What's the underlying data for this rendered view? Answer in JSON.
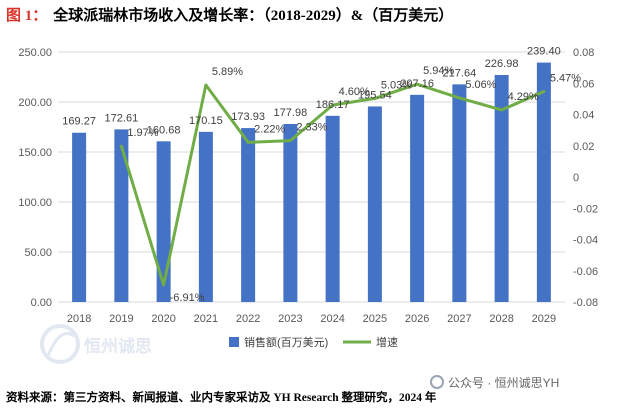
{
  "header": {
    "figure_label": "图 1：",
    "title": "全球派瑞林市场收入及增长率：（2018-2029）&（百万美元）"
  },
  "chart_data": {
    "type": "bar",
    "title": "全球派瑞林市场收入及增长率：（2018-2029）&（百万美元）",
    "categories": [
      "2018",
      "2019",
      "2020",
      "2021",
      "2022",
      "2023",
      "2024",
      "2025",
      "2026",
      "2027",
      "2028",
      "2029"
    ],
    "series": [
      {
        "name": "销售额(百万美元)",
        "type": "bar",
        "axis": "left",
        "color": "#4472c4",
        "values": [
          169.27,
          172.61,
          160.68,
          170.15,
          173.93,
          177.98,
          186.17,
          195.54,
          207.16,
          217.64,
          226.98,
          239.4
        ],
        "labels": [
          "169.27",
          "172.61",
          "160.68",
          "170.15",
          "173.93",
          "177.98",
          "186.17",
          "195.54",
          "207.16",
          "217.64",
          "226.98",
          "239.40"
        ]
      },
      {
        "name": "增速",
        "type": "line",
        "axis": "right",
        "color": "#70ad47",
        "values": [
          null,
          0.0197,
          -0.0691,
          0.0589,
          0.0222,
          0.0233,
          0.046,
          0.0503,
          0.0594,
          0.0506,
          0.0429,
          0.0547
        ],
        "labels": [
          null,
          "1.97%",
          "-6.91%",
          "5.89%",
          "2.22%",
          "2.33%",
          "4.60%",
          "5.03%",
          "5.94%",
          "5.06%",
          "4.29%",
          "5.47%"
        ]
      }
    ],
    "y_left": {
      "ylim": [
        0,
        250
      ],
      "ticks": [
        0,
        50,
        100,
        150,
        200,
        250
      ],
      "tick_labels": [
        "0.00",
        "50.00",
        "100.00",
        "150.00",
        "200.00",
        "250.00"
      ]
    },
    "y_right": {
      "ylim": [
        -0.08,
        0.08
      ],
      "ticks": [
        -0.08,
        -0.06,
        -0.04,
        -0.02,
        0,
        0.02,
        0.04,
        0.06,
        0.08
      ],
      "tick_labels": [
        "-0.08",
        "-0.06",
        "-0.04",
        "-0.02",
        "0",
        "0.02",
        "0.04",
        "0.06",
        "0.08"
      ]
    },
    "grid": true,
    "legend": {
      "position": "bottom",
      "entries": [
        "销售额(百万美元)",
        "增速"
      ]
    }
  },
  "footer": {
    "source": "资料来源：第三方资料、新闻报道、业内专家采访及 YH Research 整理研究，2024 年",
    "watermark": "公众号 · 恒州诚思YH",
    "logo_text": "恒州诚思"
  }
}
